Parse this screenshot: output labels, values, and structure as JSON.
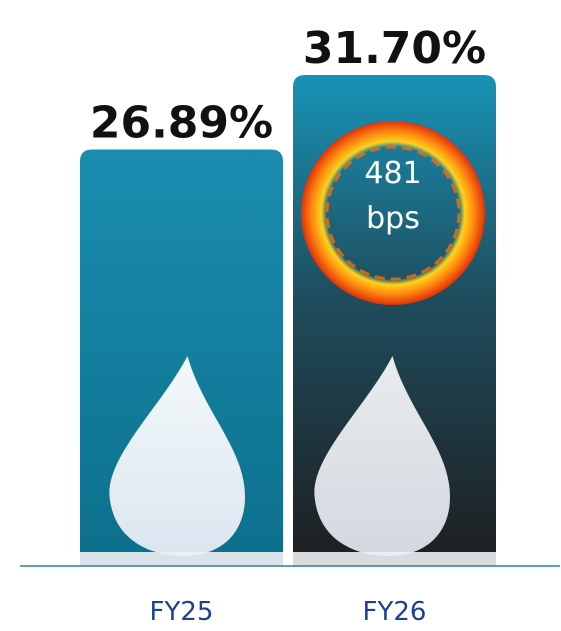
{
  "chart_data": {
    "type": "bar",
    "categories": [
      "FY25",
      "FY26"
    ],
    "values": [
      26.89,
      31.7
    ],
    "value_labels": [
      "26.89%",
      "31.70%"
    ],
    "annotation": [
      "481",
      "bps"
    ]
  }
}
